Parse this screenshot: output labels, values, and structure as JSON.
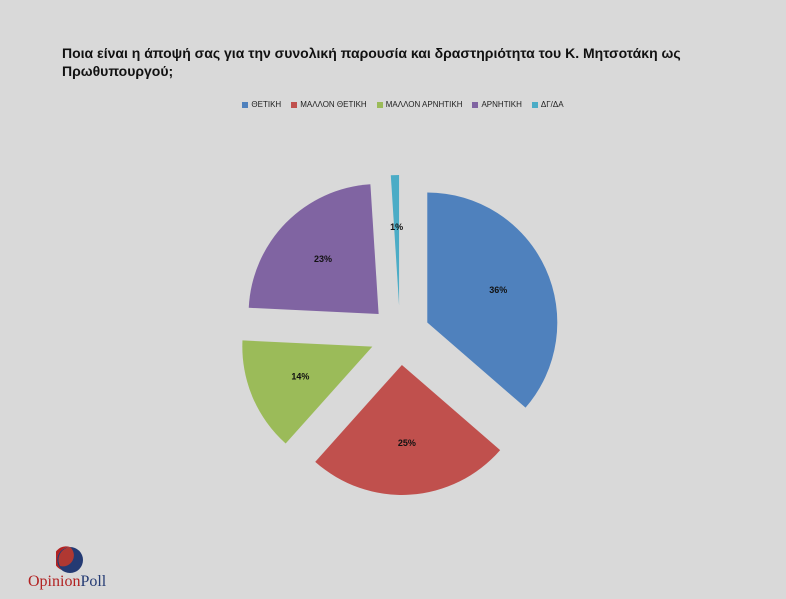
{
  "title": "Ποια είναι η άποψή σας για την συνολική παρουσία και δραστηριότητα του Κ. Μητσοτάκη ως Πρωθυπουργού;",
  "legend": [
    {
      "label": "ΘΕΤΙΚΗ",
      "color": "#4f81bd"
    },
    {
      "label": "ΜΑΛΛΟΝ ΘΕΤΙΚΗ",
      "color": "#c0504d"
    },
    {
      "label": "ΜΑΛΛΟΝ ΑΡΝΗΤΙΚΗ",
      "color": "#9bbb59"
    },
    {
      "label": "ΑΡΝΗΤΙΚΗ",
      "color": "#8064a2"
    },
    {
      "label": "ΔΓ/ΔΑ",
      "color": "#4bacc6"
    }
  ],
  "chart_data": {
    "type": "pie",
    "title": "Ποια είναι η άποψή σας για την συνολική παρουσία και δραστηριότητα του Κ. Μητσοτάκη ως Πρωθυπουργού;",
    "categories": [
      "ΘΕΤΙΚΗ",
      "ΜΑΛΛΟΝ ΘΕΤΙΚΗ",
      "ΜΑΛΛΟΝ ΑΡΝΗΤΙΚΗ",
      "ΑΡΝΗΤΙΚΗ",
      "ΔΓ/ΔΑ"
    ],
    "values": [
      36,
      25,
      14,
      23,
      1
    ],
    "labels": [
      "36%",
      "25%",
      "14%",
      "23%",
      "1%"
    ],
    "colors": [
      "#4f81bd",
      "#c0504d",
      "#9bbb59",
      "#8064a2",
      "#4bacc6"
    ],
    "exploded": true,
    "legend_position": "top"
  },
  "logo": {
    "text_part1": "Opinion",
    "text_part2": "Poll",
    "color1": "#b22222",
    "color2": "#243a73"
  }
}
